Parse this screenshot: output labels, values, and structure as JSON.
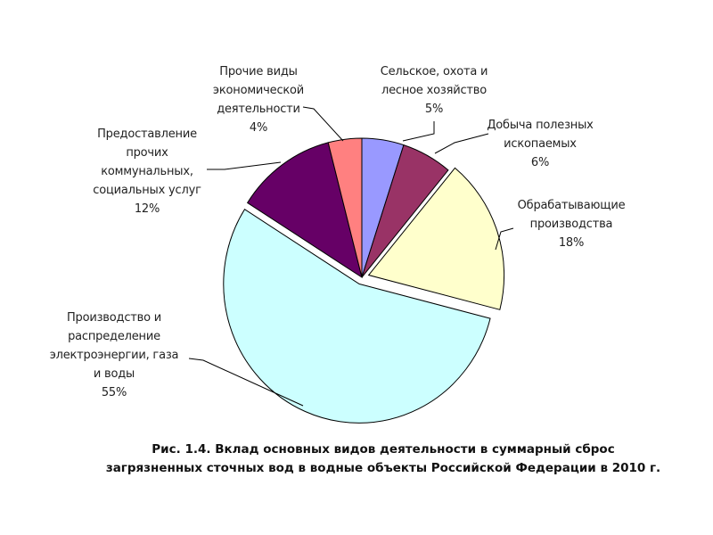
{
  "chart_data": {
    "type": "pie",
    "title": "Рис. 1.4. Вклад основных видов деятельности в суммарный сброс загрязненных сточных вод в водные объекты Российской Федерации в 2010 г.",
    "caption_lines": [
      "Рис. 1.4. Вклад основных видов деятельности в суммарный сброс",
      "загрязненных сточных вод в водные объекты Российской Федерации в 2010 г."
    ],
    "slices": [
      {
        "name": "Сельское, охота и лесное хозяйство",
        "lines": [
          "Сельское, охота и",
          "лесное хозяйство"
        ],
        "value": 5,
        "pct": "5%",
        "color": "#9999ff",
        "exploded": false
      },
      {
        "name": "Добыча полезных ископаемых",
        "lines": [
          "Добыча полезных",
          "ископаемых"
        ],
        "value": 6,
        "pct": "6%",
        "color": "#993366",
        "exploded": false
      },
      {
        "name": "Обрабатывающие производства",
        "lines": [
          "Обрабатывающие",
          "производства"
        ],
        "value": 18,
        "pct": "18%",
        "color": "#ffffcc",
        "exploded": true
      },
      {
        "name": "Производство и распределение электроэнергии, газа и воды",
        "lines": [
          "Производство и",
          "распределение",
          "электроэнергии, газа",
          "и воды"
        ],
        "value": 55,
        "pct": "55%",
        "color": "#ccffff",
        "exploded": true
      },
      {
        "name": "Предоставление прочих коммунальных, социальных услуг",
        "lines": [
          "Предоставление",
          "прочих",
          "коммунальных,",
          "социальных услуг"
        ],
        "value": 12,
        "pct": "12%",
        "color": "#660066",
        "exploded": false
      },
      {
        "name": "Прочие виды экономической деятельности",
        "lines": [
          "Прочие виды",
          "экономической",
          "деятельности"
        ],
        "value": 4,
        "pct": "4%",
        "color": "#ff8080",
        "exploded": false
      }
    ],
    "start": "12 o'clock",
    "direction": "clockwise",
    "legend": "none"
  }
}
